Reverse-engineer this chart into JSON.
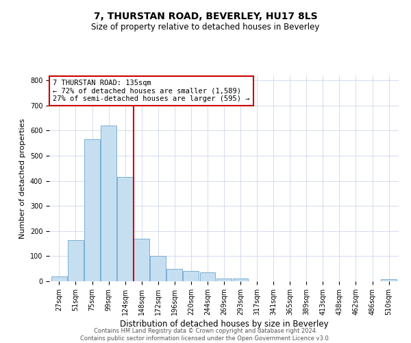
{
  "title": "7, THURSTAN ROAD, BEVERLEY, HU17 8LS",
  "subtitle": "Size of property relative to detached houses in Beverley",
  "xlabel": "Distribution of detached houses by size in Beverley",
  "ylabel": "Number of detached properties",
  "bin_labels": [
    "27sqm",
    "51sqm",
    "75sqm",
    "99sqm",
    "124sqm",
    "148sqm",
    "172sqm",
    "196sqm",
    "220sqm",
    "244sqm",
    "269sqm",
    "293sqm",
    "317sqm",
    "341sqm",
    "365sqm",
    "389sqm",
    "413sqm",
    "438sqm",
    "462sqm",
    "486sqm",
    "510sqm"
  ],
  "bar_heights": [
    20,
    165,
    565,
    620,
    415,
    170,
    100,
    50,
    40,
    35,
    10,
    10,
    0,
    0,
    0,
    0,
    0,
    0,
    0,
    0,
    8
  ],
  "bar_color": "#c6dff0",
  "bar_edge_color": "#7bafd4",
  "vline_color": "#cc0000",
  "vline_pos": 4.5,
  "ylim": [
    0,
    820
  ],
  "yticks": [
    0,
    100,
    200,
    300,
    400,
    500,
    600,
    700,
    800
  ],
  "annotation_line1": "7 THURSTAN ROAD: 135sqm",
  "annotation_line2": "← 72% of detached houses are smaller (1,589)",
  "annotation_line3": "27% of semi-detached houses are larger (595) →",
  "annotation_box_color": "#cc0000",
  "footer_line1": "Contains HM Land Registry data © Crown copyright and database right 2024.",
  "footer_line2": "Contains public sector information licensed under the Open Government Licence v3.0.",
  "background_color": "#ffffff",
  "grid_color": "#ccd6e8",
  "title_fontsize": 10,
  "subtitle_fontsize": 8.5,
  "ylabel_fontsize": 8,
  "xlabel_fontsize": 8.5,
  "tick_fontsize": 7,
  "footer_fontsize": 6,
  "annot_fontsize": 7.5
}
